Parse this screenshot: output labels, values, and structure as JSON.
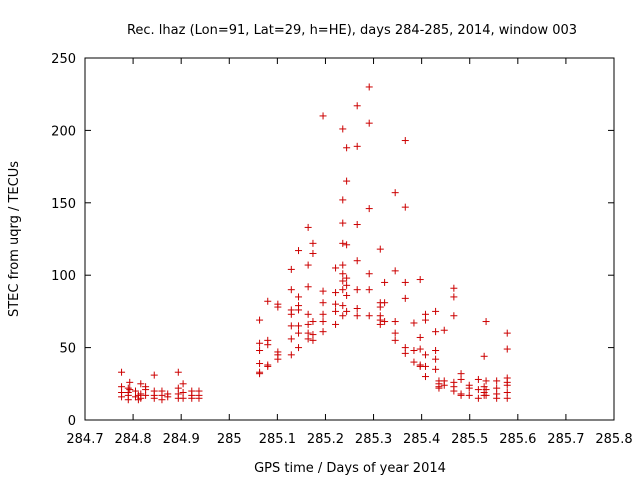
{
  "chart_data": {
    "type": "scatter",
    "title": "Rec. lhaz (Lon=91, Lat=29, h=HE), days 284-285, 2014, window 003",
    "xlabel": "GPS time / Days of year 2014",
    "ylabel": "STEC from uqrg / TECUs",
    "xlim": [
      284.7,
      285.8
    ],
    "ylim": [
      0,
      250
    ],
    "xticks": [
      "284.7",
      "284.8",
      "284.9",
      "285",
      "285.1",
      "285.2",
      "285.3",
      "285.4",
      "285.5",
      "285.6",
      "285.7",
      "285.8"
    ],
    "yticks": [
      "0",
      "50",
      "100",
      "150",
      "200",
      "250"
    ],
    "grid": false,
    "marker": "plus",
    "color": "#cc0000",
    "series": [
      {
        "points": [
          [
            284.776,
            33
          ],
          [
            284.776,
            23
          ],
          [
            284.776,
            19
          ],
          [
            284.776,
            16
          ],
          [
            284.79,
            22
          ],
          [
            284.79,
            19
          ],
          [
            284.79,
            17
          ],
          [
            284.79,
            14
          ],
          [
            284.793,
            26
          ],
          [
            284.793,
            21
          ],
          [
            284.805,
            20
          ],
          [
            284.805,
            16
          ],
          [
            284.811,
            17
          ],
          [
            284.811,
            14
          ],
          [
            284.816,
            25
          ],
          [
            284.816,
            18
          ],
          [
            284.816,
            15
          ],
          [
            284.826,
            23
          ],
          [
            284.826,
            21
          ],
          [
            284.826,
            17
          ],
          [
            284.844,
            31
          ],
          [
            284.844,
            20
          ],
          [
            284.844,
            17
          ],
          [
            284.844,
            15
          ],
          [
            284.86,
            20
          ],
          [
            284.86,
            17
          ],
          [
            284.86,
            14
          ],
          [
            284.872,
            18
          ],
          [
            284.872,
            16
          ],
          [
            284.894,
            33
          ],
          [
            284.894,
            22
          ],
          [
            284.894,
            18
          ],
          [
            284.894,
            15
          ],
          [
            284.904,
            25
          ],
          [
            284.904,
            19
          ],
          [
            284.904,
            15
          ],
          [
            284.922,
            20
          ],
          [
            284.922,
            17
          ],
          [
            284.922,
            15
          ],
          [
            284.937,
            20
          ],
          [
            284.937,
            17
          ],
          [
            284.937,
            15
          ],
          [
            285.063,
            69
          ],
          [
            285.063,
            53
          ],
          [
            285.063,
            48
          ],
          [
            285.063,
            39
          ],
          [
            285.063,
            33
          ],
          [
            285.063,
            32
          ],
          [
            285.08,
            82
          ],
          [
            285.08,
            55
          ],
          [
            285.08,
            52
          ],
          [
            285.08,
            38
          ],
          [
            285.08,
            37
          ],
          [
            285.101,
            80
          ],
          [
            285.101,
            78
          ],
          [
            285.101,
            47
          ],
          [
            285.101,
            45
          ],
          [
            285.101,
            42
          ],
          [
            285.129,
            104
          ],
          [
            285.129,
            90
          ],
          [
            285.129,
            76
          ],
          [
            285.129,
            73
          ],
          [
            285.129,
            65
          ],
          [
            285.129,
            56
          ],
          [
            285.129,
            45
          ],
          [
            285.144,
            117
          ],
          [
            285.144,
            85
          ],
          [
            285.144,
            79
          ],
          [
            285.144,
            76
          ],
          [
            285.144,
            65
          ],
          [
            285.144,
            60
          ],
          [
            285.144,
            50
          ],
          [
            285.164,
            133
          ],
          [
            285.164,
            107
          ],
          [
            285.164,
            92
          ],
          [
            285.164,
            73
          ],
          [
            285.164,
            66
          ],
          [
            285.164,
            60
          ],
          [
            285.164,
            56
          ],
          [
            285.174,
            122
          ],
          [
            285.174,
            115
          ],
          [
            285.174,
            68
          ],
          [
            285.174,
            59
          ],
          [
            285.174,
            55
          ],
          [
            285.195,
            210
          ],
          [
            285.195,
            89
          ],
          [
            285.195,
            81
          ],
          [
            285.195,
            73
          ],
          [
            285.195,
            68
          ],
          [
            285.195,
            61
          ],
          [
            285.221,
            105
          ],
          [
            285.221,
            88
          ],
          [
            285.221,
            80
          ],
          [
            285.221,
            75
          ],
          [
            285.221,
            66
          ],
          [
            285.236,
            201
          ],
          [
            285.236,
            152
          ],
          [
            285.236,
            136
          ],
          [
            285.236,
            122
          ],
          [
            285.236,
            107
          ],
          [
            285.236,
            101
          ],
          [
            285.236,
            96
          ],
          [
            285.236,
            90
          ],
          [
            285.236,
            79
          ],
          [
            285.236,
            72
          ],
          [
            285.244,
            188
          ],
          [
            285.244,
            165
          ],
          [
            285.244,
            121
          ],
          [
            285.244,
            98
          ],
          [
            285.244,
            93
          ],
          [
            285.244,
            86
          ],
          [
            285.244,
            75
          ],
          [
            285.266,
            217
          ],
          [
            285.266,
            189
          ],
          [
            285.266,
            135
          ],
          [
            285.266,
            110
          ],
          [
            285.266,
            90
          ],
          [
            285.266,
            77
          ],
          [
            285.266,
            72
          ],
          [
            285.291,
            230
          ],
          [
            285.291,
            205
          ],
          [
            285.291,
            146
          ],
          [
            285.291,
            101
          ],
          [
            285.291,
            90
          ],
          [
            285.291,
            72
          ],
          [
            285.314,
            118
          ],
          [
            285.314,
            81
          ],
          [
            285.314,
            78
          ],
          [
            285.314,
            72
          ],
          [
            285.314,
            69
          ],
          [
            285.314,
            66
          ],
          [
            285.323,
            95
          ],
          [
            285.323,
            81
          ],
          [
            285.323,
            68
          ],
          [
            285.345,
            157
          ],
          [
            285.345,
            103
          ],
          [
            285.345,
            68
          ],
          [
            285.345,
            60
          ],
          [
            285.345,
            55
          ],
          [
            285.366,
            193
          ],
          [
            285.366,
            147
          ],
          [
            285.366,
            95
          ],
          [
            285.366,
            84
          ],
          [
            285.366,
            50
          ],
          [
            285.366,
            46
          ],
          [
            285.384,
            67
          ],
          [
            285.384,
            48
          ],
          [
            285.384,
            40
          ],
          [
            285.397,
            97
          ],
          [
            285.397,
            57
          ],
          [
            285.397,
            49
          ],
          [
            285.397,
            38
          ],
          [
            285.397,
            37
          ],
          [
            285.408,
            73
          ],
          [
            285.408,
            69
          ],
          [
            285.408,
            45
          ],
          [
            285.408,
            37
          ],
          [
            285.408,
            30
          ],
          [
            285.429,
            75
          ],
          [
            285.429,
            61
          ],
          [
            285.429,
            48
          ],
          [
            285.429,
            42
          ],
          [
            285.429,
            35
          ],
          [
            285.436,
            27
          ],
          [
            285.436,
            25
          ],
          [
            285.436,
            23
          ],
          [
            285.436,
            22
          ],
          [
            285.447,
            62
          ],
          [
            285.447,
            27
          ],
          [
            285.447,
            24
          ],
          [
            285.467,
            91
          ],
          [
            285.467,
            85
          ],
          [
            285.467,
            72
          ],
          [
            285.467,
            26
          ],
          [
            285.467,
            23
          ],
          [
            285.467,
            20
          ],
          [
            285.482,
            32
          ],
          [
            285.482,
            28
          ],
          [
            285.482,
            18
          ],
          [
            285.482,
            17
          ],
          [
            285.499,
            24
          ],
          [
            285.499,
            22
          ],
          [
            285.499,
            17
          ],
          [
            285.518,
            28
          ],
          [
            285.518,
            21
          ],
          [
            285.518,
            15
          ],
          [
            285.53,
            44
          ],
          [
            285.53,
            23
          ],
          [
            285.53,
            19
          ],
          [
            285.53,
            17
          ],
          [
            285.534,
            68
          ],
          [
            285.534,
            27
          ],
          [
            285.534,
            21
          ],
          [
            285.534,
            17
          ],
          [
            285.556,
            27
          ],
          [
            285.556,
            22
          ],
          [
            285.556,
            18
          ],
          [
            285.556,
            15
          ],
          [
            285.578,
            60
          ],
          [
            285.578,
            49
          ],
          [
            285.578,
            29
          ],
          [
            285.578,
            26
          ],
          [
            285.578,
            24
          ],
          [
            285.578,
            19
          ],
          [
            285.578,
            15
          ]
        ]
      }
    ]
  }
}
